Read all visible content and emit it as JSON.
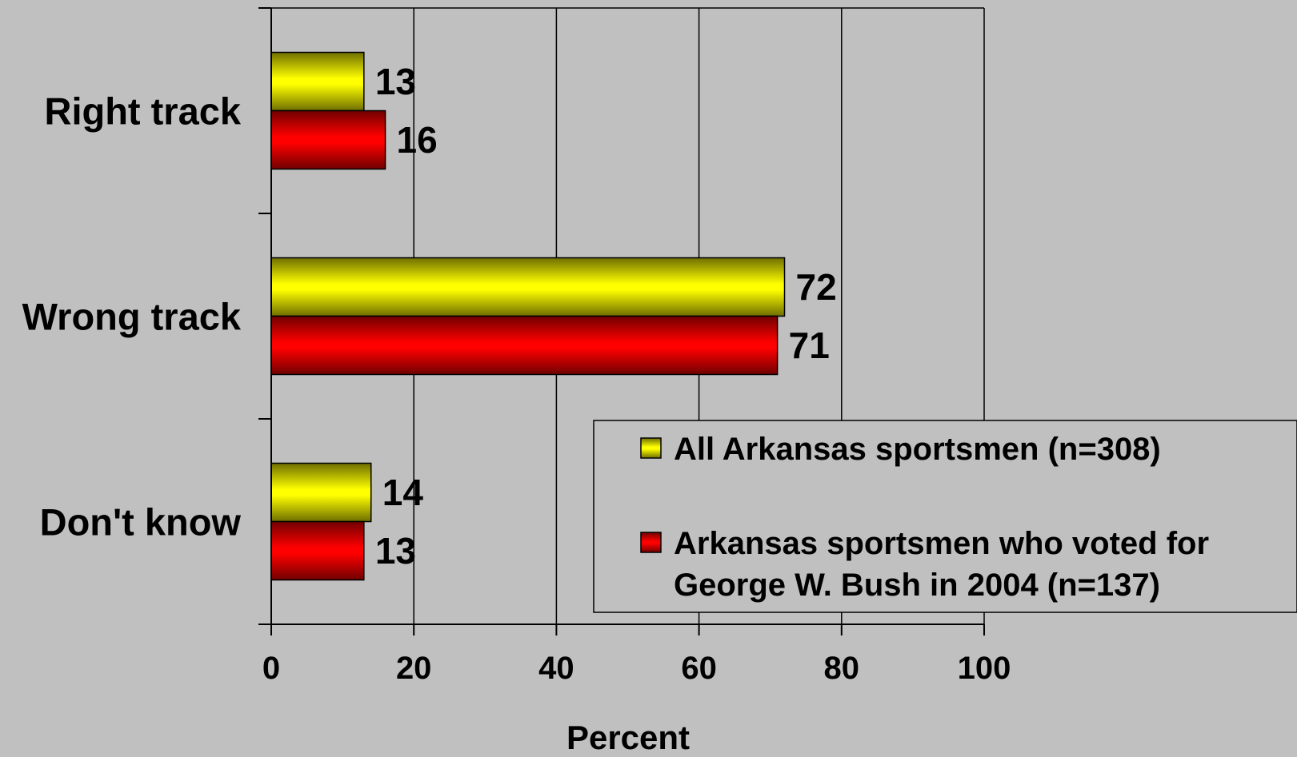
{
  "chart_data": {
    "type": "bar",
    "orientation": "horizontal",
    "categories": [
      "Right track",
      "Wrong track",
      "Don't know"
    ],
    "series": [
      {
        "name": "All Arkansas sportsmen (n=308)",
        "values": [
          13,
          72,
          14
        ],
        "color": "#ffff00"
      },
      {
        "name": "Arkansas sportsmen who voted for George W. Bush in 2004 (n=137)",
        "values": [
          16,
          71,
          13
        ],
        "color": "#ff0000"
      }
    ],
    "xlabel": "Percent",
    "xlim": [
      0,
      100
    ],
    "xticks": [
      "0",
      "20",
      "40",
      "60",
      "80",
      "100"
    ],
    "grid": true,
    "legend": {
      "placement": "bottom-right",
      "entries": [
        {
          "lines": [
            "All Arkansas sportsmen (n=308)"
          ]
        },
        {
          "lines": [
            "Arkansas sportsmen who voted for",
            "George W. Bush in 2004 (n=137)"
          ]
        }
      ]
    }
  }
}
